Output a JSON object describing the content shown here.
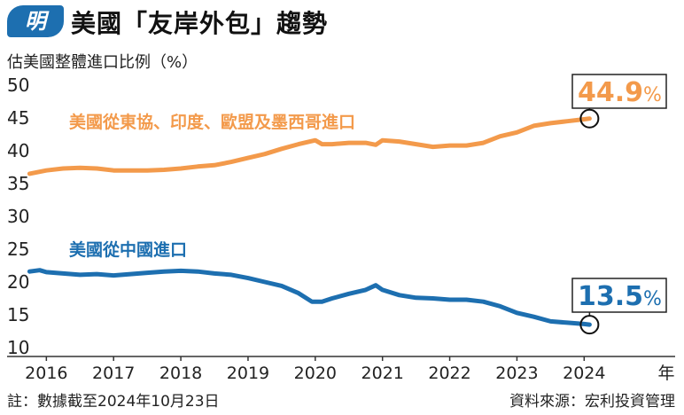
{
  "header": {
    "badge_text": "明",
    "title": "美國「友岸外包」趨勢"
  },
  "footer": {
    "note": "註：數據截至2024年10月23日",
    "source": "資料來源：宏利投資管理"
  },
  "colors": {
    "orange": "#f39a4b",
    "blue": "#1d6fb0",
    "badge": "#1d6fb0",
    "axis": "#333333"
  },
  "chart_data": {
    "type": "line",
    "ylabel": "估美國整體進口比例（%）",
    "xlabel": "年",
    "ylim": [
      10,
      50
    ],
    "xlim": [
      2015.6,
      2024.8
    ],
    "y_ticks": [
      "10",
      "15",
      "20",
      "25",
      "30",
      "35",
      "40",
      "45",
      "50"
    ],
    "x_ticks": [
      "2016",
      "2017",
      "2018",
      "2019",
      "2020",
      "2021",
      "2022",
      "2023",
      "2024"
    ],
    "x_unit_label": "年",
    "grid": false,
    "series": [
      {
        "name": "美國從東協、印度、歐盟及墨西哥進口",
        "color": "#f39a4b",
        "end_label_number": "44.9",
        "end_label_unit": "%",
        "x": [
          2015.75,
          2016.0,
          2016.25,
          2016.5,
          2016.75,
          2017.0,
          2017.25,
          2017.5,
          2017.75,
          2018.0,
          2018.25,
          2018.5,
          2018.75,
          2019.0,
          2019.25,
          2019.5,
          2019.75,
          2020.0,
          2020.1,
          2020.25,
          2020.5,
          2020.75,
          2020.9,
          2021.0,
          2021.25,
          2021.5,
          2021.75,
          2022.0,
          2022.25,
          2022.5,
          2022.75,
          2023.0,
          2023.25,
          2023.5,
          2023.75,
          2024.0,
          2024.08
        ],
        "y": [
          36.5,
          37.0,
          37.3,
          37.4,
          37.3,
          37.0,
          37.0,
          37.0,
          37.1,
          37.3,
          37.6,
          37.8,
          38.3,
          38.9,
          39.5,
          40.3,
          41.0,
          41.6,
          41.0,
          41.0,
          41.2,
          41.2,
          40.9,
          41.6,
          41.4,
          41.0,
          40.6,
          40.8,
          40.8,
          41.2,
          42.2,
          42.8,
          43.8,
          44.2,
          44.5,
          44.8,
          44.9
        ]
      },
      {
        "name": "美國從中國進口",
        "color": "#1d6fb0",
        "end_label_number": "13.5",
        "end_label_unit": "%",
        "x": [
          2015.75,
          2015.9,
          2016.0,
          2016.25,
          2016.5,
          2016.75,
          2017.0,
          2017.25,
          2017.5,
          2017.75,
          2018.0,
          2018.25,
          2018.5,
          2018.75,
          2019.0,
          2019.25,
          2019.5,
          2019.75,
          2019.95,
          2020.1,
          2020.25,
          2020.5,
          2020.75,
          2020.9,
          2021.0,
          2021.25,
          2021.5,
          2021.75,
          2022.0,
          2022.25,
          2022.5,
          2022.75,
          2023.0,
          2023.25,
          2023.5,
          2023.75,
          2024.0,
          2024.08
        ],
        "y": [
          21.6,
          21.8,
          21.5,
          21.3,
          21.1,
          21.2,
          21.0,
          21.2,
          21.4,
          21.6,
          21.7,
          21.6,
          21.3,
          21.1,
          20.6,
          20.0,
          19.4,
          18.3,
          17.0,
          17.0,
          17.5,
          18.2,
          18.8,
          19.5,
          18.8,
          18.0,
          17.6,
          17.5,
          17.3,
          17.3,
          17.0,
          16.3,
          15.3,
          14.7,
          14.0,
          13.8,
          13.6,
          13.5
        ]
      }
    ]
  }
}
